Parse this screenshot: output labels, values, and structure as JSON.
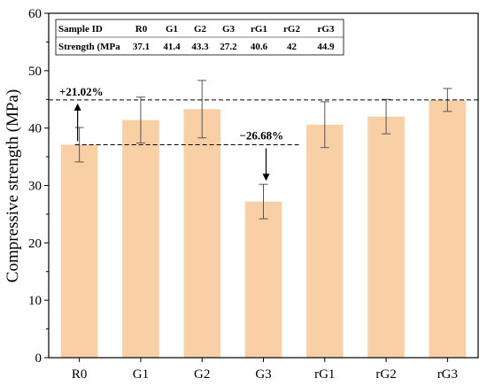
{
  "chart_data": {
    "type": "bar",
    "categories": [
      "R0",
      "G1",
      "G2",
      "G3",
      "rG1",
      "rG2",
      "rG3"
    ],
    "values": [
      37.1,
      41.4,
      43.3,
      27.2,
      40.6,
      42,
      44.9
    ],
    "errors": [
      3.0,
      4.0,
      5.0,
      3.0,
      4.0,
      3.0,
      2.0
    ],
    "ylabel": "Compressive strength (MPa)",
    "xlabel": "",
    "ylim": [
      0,
      60
    ],
    "yticks": [
      0,
      10,
      20,
      30,
      40,
      50,
      60
    ],
    "bar_color": "#f9cfa6",
    "reference_lines": [
      {
        "value": 44.9,
        "label": "+21.02%"
      },
      {
        "value": 37.1,
        "label": "−26.68%"
      }
    ],
    "inset_table": {
      "header": [
        "Sample ID",
        "R0",
        "G1",
        "G2",
        "G3",
        "rG1",
        "rG2",
        "rG3"
      ],
      "row": [
        "Strength (MPa",
        "37.1",
        "41.4",
        "43.3",
        "27.2",
        "40.6",
        "42",
        "44.9"
      ]
    }
  }
}
